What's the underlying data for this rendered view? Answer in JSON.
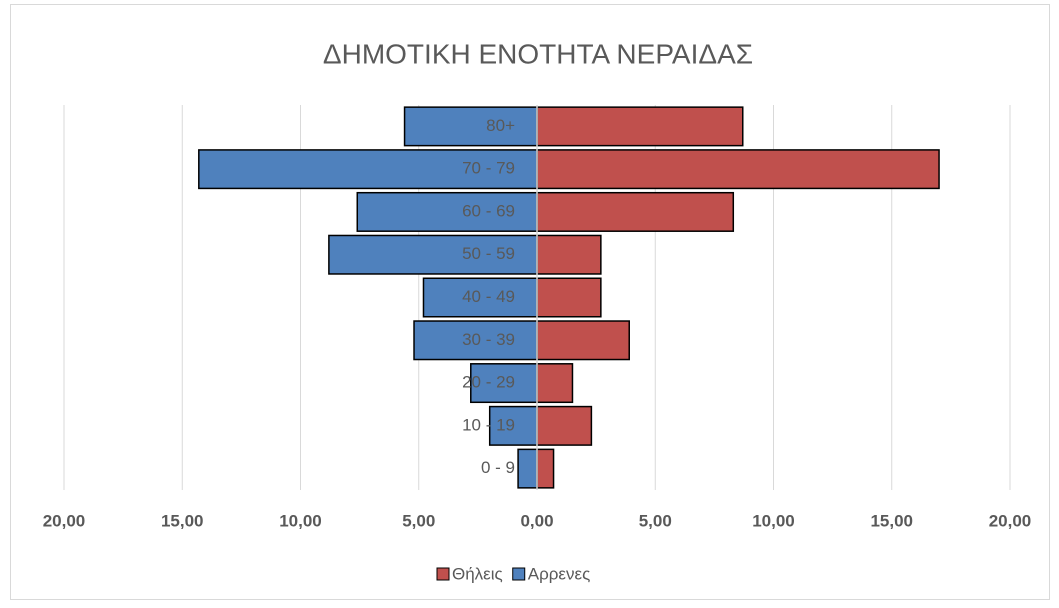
{
  "chart_data": {
    "type": "pyramid",
    "title": "ΔΗΜΟΤΙΚΗ ΕΝΟΤΗΤΑ ΝΕΡΑΙΔΑΣ",
    "categories": [
      "0 - 9",
      "10 - 19",
      "20 - 29",
      "30 - 39",
      "40 - 49",
      "50 - 59",
      "60 - 69",
      "70 - 79",
      "80+"
    ],
    "series": [
      {
        "name": "Θήλεις",
        "color": "#c0504d",
        "values": [
          0.7,
          2.3,
          1.5,
          3.9,
          2.7,
          2.7,
          8.3,
          17.0,
          8.7
        ]
      },
      {
        "name": "Αρρενες",
        "color": "#4f81bd",
        "values": [
          -0.8,
          -2.0,
          -2.8,
          -5.2,
          -4.8,
          -8.8,
          -7.6,
          -14.3,
          -5.6
        ]
      }
    ],
    "xlim": [
      -20,
      20
    ],
    "xticks": [
      {
        "value": -20,
        "label": "20,00"
      },
      {
        "value": -15,
        "label": "15,00"
      },
      {
        "value": -10,
        "label": "10,00"
      },
      {
        "value": -5,
        "label": "5,00"
      },
      {
        "value": 0,
        "label": "0,00"
      },
      {
        "value": 5,
        "label": "5,00"
      },
      {
        "value": 10,
        "label": "10,00"
      },
      {
        "value": 15,
        "label": "15,00"
      },
      {
        "value": 20,
        "label": "20,00"
      }
    ],
    "grid": true,
    "legend": "bottom"
  }
}
